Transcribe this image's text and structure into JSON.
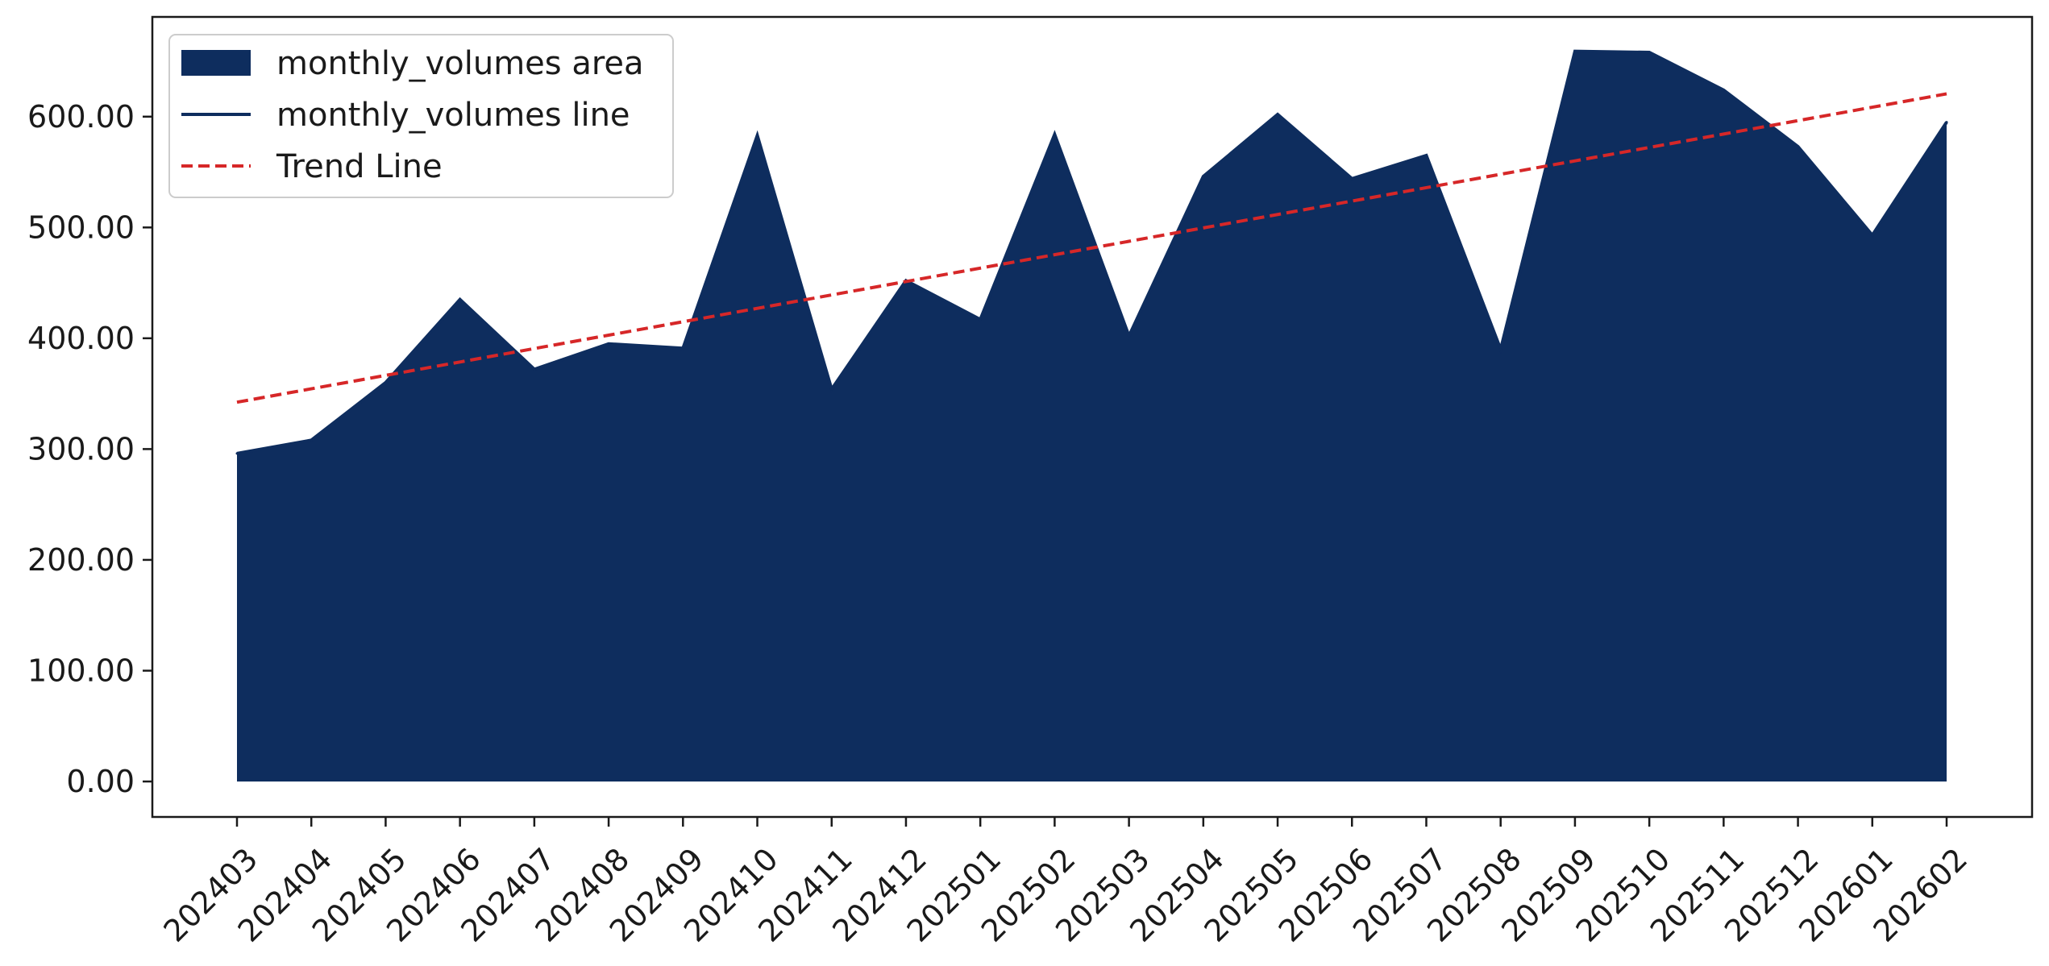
{
  "chart_data": {
    "type": "area",
    "title": "",
    "xlabel": "",
    "ylabel": "",
    "categories": [
      "202403",
      "202404",
      "202405",
      "202406",
      "202407",
      "202408",
      "202409",
      "202410",
      "202411",
      "202412",
      "202501",
      "202502",
      "202503",
      "202504",
      "202505",
      "202506",
      "202507",
      "202508",
      "202509",
      "202510",
      "202511",
      "202512",
      "202601",
      "202602"
    ],
    "series": [
      {
        "name": "monthly_volumes area",
        "kind": "area",
        "color": "#0e2d5e",
        "values": [
          296,
          308,
          360,
          435,
          372,
          395,
          391,
          583,
          354,
          452,
          417,
          584,
          402,
          546,
          602,
          544,
          565,
          390,
          659,
          658,
          624,
          573,
          493,
          595
        ]
      },
      {
        "name": "monthly_volumes line",
        "kind": "line",
        "color": "#0e2d5e",
        "values": [
          296,
          308,
          360,
          435,
          372,
          395,
          391,
          583,
          354,
          452,
          417,
          584,
          402,
          546,
          602,
          544,
          565,
          390,
          659,
          658,
          624,
          573,
          493,
          595
        ]
      },
      {
        "name": "Trend Line",
        "kind": "trend",
        "color": "#d62728",
        "style": "dashed",
        "values": [
          342.3,
          354.4,
          366.5,
          378.6,
          390.7,
          402.8,
          414.9,
          427.0,
          439.1,
          451.2,
          463.3,
          475.4,
          487.5,
          499.6,
          511.7,
          523.8,
          535.9,
          548.0,
          560.1,
          572.2,
          584.3,
          596.4,
          608.5,
          620.6
        ]
      }
    ],
    "yticks": [
      0,
      100,
      200,
      300,
      400,
      500,
      600
    ],
    "ytick_labels": [
      "0.00",
      "100.00",
      "200.00",
      "300.00",
      "400.00",
      "500.00",
      "600.00"
    ],
    "ylim": [
      -32,
      690
    ],
    "grid": false,
    "legend_position": "top-left"
  }
}
